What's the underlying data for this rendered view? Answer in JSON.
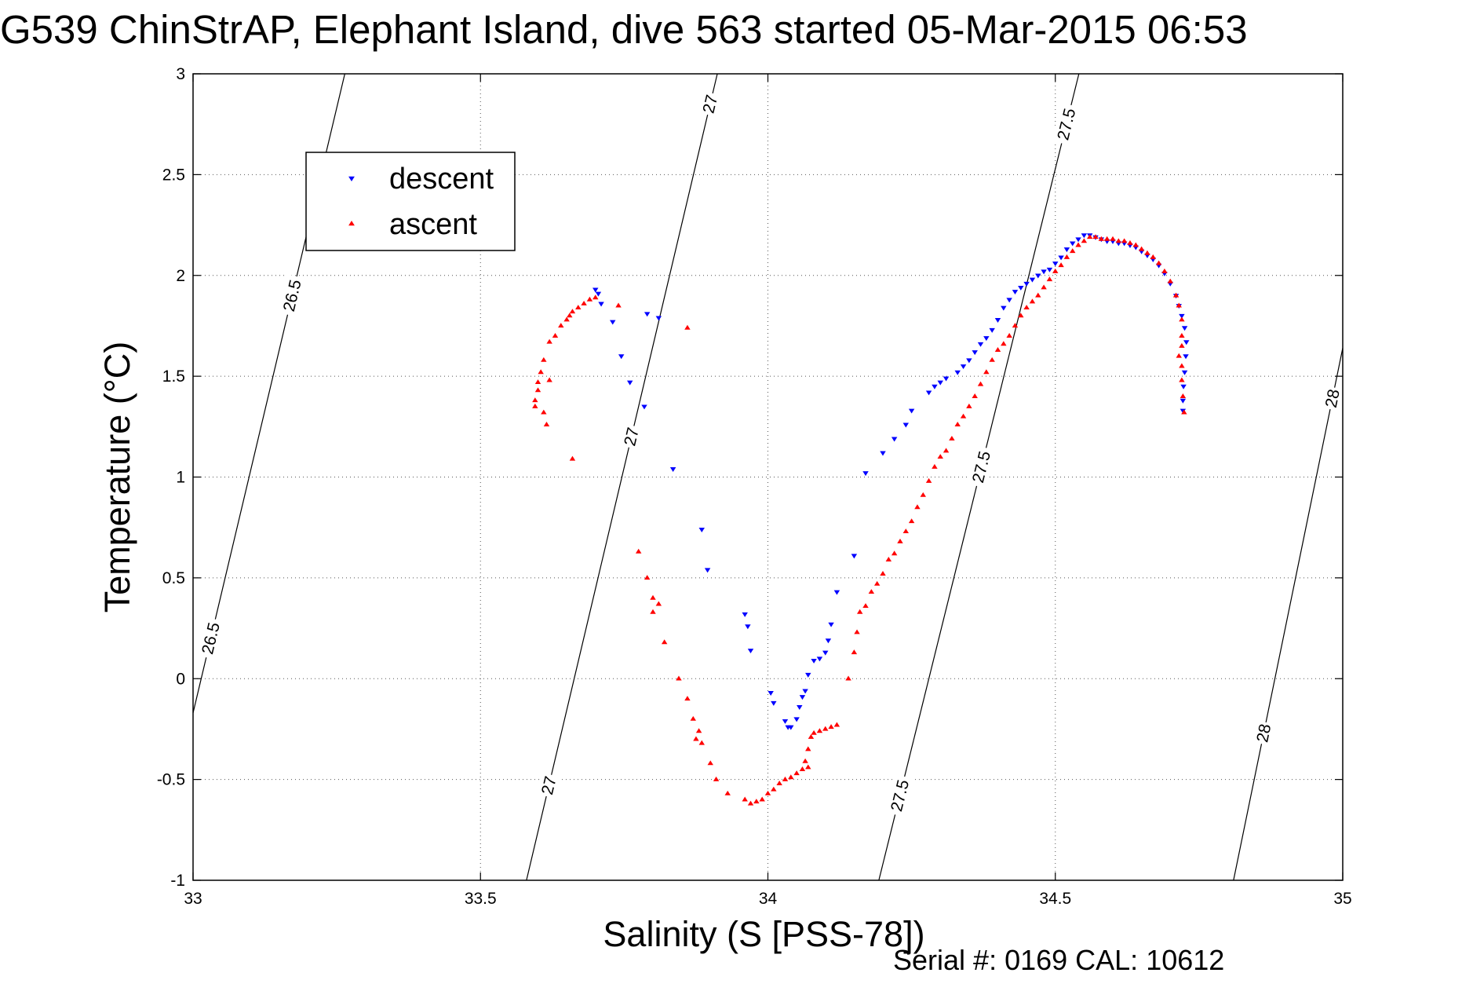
{
  "chart_data": {
    "type": "scatter",
    "title": "G539 ChinStrAP, Elephant Island, dive 563 started 05-Mar-2015 06:53",
    "xlabel": "Salinity (S [PSS-78])",
    "ylabel": "Temperature (°C)",
    "xlim": [
      33,
      35
    ],
    "ylim": [
      -1,
      3
    ],
    "xticks": [
      "33",
      "33.5",
      "34",
      "34.5",
      "35"
    ],
    "yticks": [
      "-1",
      "-0.5",
      "0",
      "0.5",
      "1",
      "1.5",
      "2",
      "2.5",
      "3"
    ],
    "grid": true,
    "legend": {
      "placement": "top-left",
      "entries": [
        "descent",
        "ascent"
      ]
    },
    "footer": "Serial #: 0169 CAL: 10612",
    "density_contours": [
      {
        "label": "26.5",
        "points": [
          [
            33.0,
            -0.17
          ],
          [
            33.264,
            3.0
          ]
        ],
        "label_positions": [
          [
            33.027,
            0.2
          ],
          [
            33.16,
            1.9
          ]
        ]
      },
      {
        "label": "27",
        "points": [
          [
            33.58,
            -1.0
          ],
          [
            33.912,
            3.0
          ]
        ],
        "label_positions": [
          [
            33.605,
            -0.53
          ],
          [
            33.7,
            1.2
          ],
          [
            33.865,
            2.85
          ]
        ]
      },
      {
        "label": "27.5",
        "points": [
          [
            34.193,
            -1.0
          ],
          [
            34.541,
            3.0
          ]
        ],
        "label_positions": [
          [
            34.22,
            -0.58
          ],
          [
            34.33,
            1.05
          ],
          [
            34.495,
            2.75
          ]
        ]
      },
      {
        "label": "28",
        "points": [
          [
            34.81,
            -1.0
          ],
          [
            35.0,
            1.64
          ]
        ],
        "label_positions": [
          [
            34.85,
            -0.27
          ],
          [
            34.985,
            1.39
          ]
        ]
      }
    ],
    "series": [
      {
        "name": "descent",
        "color": "#0000ff",
        "marker": "triangle-down",
        "points": [
          [
            33.7,
            1.93
          ],
          [
            33.705,
            1.91
          ],
          [
            33.71,
            1.86
          ],
          [
            33.73,
            1.77
          ],
          [
            33.745,
            1.6
          ],
          [
            33.76,
            1.47
          ],
          [
            33.785,
            1.35
          ],
          [
            33.79,
            1.81
          ],
          [
            33.81,
            1.79
          ],
          [
            33.835,
            1.04
          ],
          [
            33.885,
            0.74
          ],
          [
            33.895,
            0.54
          ],
          [
            33.96,
            0.32
          ],
          [
            33.965,
            0.26
          ],
          [
            33.97,
            0.14
          ],
          [
            34.005,
            -0.07
          ],
          [
            34.01,
            -0.12
          ],
          [
            34.03,
            -0.21
          ],
          [
            34.035,
            -0.24
          ],
          [
            34.04,
            -0.24
          ],
          [
            34.05,
            -0.2
          ],
          [
            34.055,
            -0.14
          ],
          [
            34.06,
            -0.09
          ],
          [
            34.065,
            -0.06
          ],
          [
            34.07,
            0.02
          ],
          [
            34.08,
            0.09
          ],
          [
            34.09,
            0.1
          ],
          [
            34.1,
            0.13
          ],
          [
            34.105,
            0.19
          ],
          [
            34.11,
            0.27
          ],
          [
            34.12,
            0.43
          ],
          [
            34.15,
            0.61
          ],
          [
            34.17,
            1.02
          ],
          [
            34.2,
            1.12
          ],
          [
            34.22,
            1.19
          ],
          [
            34.24,
            1.26
          ],
          [
            34.25,
            1.33
          ],
          [
            34.28,
            1.42
          ],
          [
            34.29,
            1.45
          ],
          [
            34.3,
            1.47
          ],
          [
            34.31,
            1.49
          ],
          [
            34.33,
            1.52
          ],
          [
            34.34,
            1.55
          ],
          [
            34.35,
            1.58
          ],
          [
            34.36,
            1.62
          ],
          [
            34.37,
            1.66
          ],
          [
            34.38,
            1.69
          ],
          [
            34.39,
            1.73
          ],
          [
            34.4,
            1.78
          ],
          [
            34.41,
            1.84
          ],
          [
            34.42,
            1.88
          ],
          [
            34.43,
            1.92
          ],
          [
            34.44,
            1.94
          ],
          [
            34.45,
            1.96
          ],
          [
            34.46,
            1.98
          ],
          [
            34.47,
            2.0
          ],
          [
            34.48,
            2.02
          ],
          [
            34.49,
            2.03
          ],
          [
            34.5,
            2.06
          ],
          [
            34.51,
            2.09
          ],
          [
            34.52,
            2.13
          ],
          [
            34.53,
            2.16
          ],
          [
            34.54,
            2.18
          ],
          [
            34.55,
            2.2
          ],
          [
            34.56,
            2.2
          ],
          [
            34.57,
            2.19
          ],
          [
            34.58,
            2.18
          ],
          [
            34.59,
            2.17
          ],
          [
            34.6,
            2.17
          ],
          [
            34.61,
            2.16
          ],
          [
            34.62,
            2.16
          ],
          [
            34.63,
            2.15
          ],
          [
            34.64,
            2.14
          ],
          [
            34.65,
            2.12
          ],
          [
            34.66,
            2.1
          ],
          [
            34.67,
            2.08
          ],
          [
            34.68,
            2.05
          ],
          [
            34.69,
            2.01
          ],
          [
            34.7,
            1.96
          ],
          [
            34.71,
            1.9
          ],
          [
            34.715,
            1.85
          ],
          [
            34.72,
            1.8
          ],
          [
            34.725,
            1.74
          ],
          [
            34.728,
            1.67
          ],
          [
            34.727,
            1.6
          ],
          [
            34.725,
            1.52
          ],
          [
            34.723,
            1.45
          ],
          [
            34.722,
            1.38
          ],
          [
            34.722,
            1.33
          ]
        ]
      },
      {
        "name": "ascent",
        "color": "#ff0000",
        "marker": "triangle-up",
        "points": [
          [
            33.7,
            1.89
          ],
          [
            33.69,
            1.88
          ],
          [
            33.68,
            1.86
          ],
          [
            33.67,
            1.84
          ],
          [
            33.66,
            1.82
          ],
          [
            33.655,
            1.8
          ],
          [
            33.65,
            1.78
          ],
          [
            33.64,
            1.75
          ],
          [
            33.63,
            1.7
          ],
          [
            33.62,
            1.67
          ],
          [
            33.61,
            1.58
          ],
          [
            33.605,
            1.52
          ],
          [
            33.6,
            1.47
          ],
          [
            33.62,
            1.48
          ],
          [
            33.6,
            1.43
          ],
          [
            33.595,
            1.38
          ],
          [
            33.595,
            1.35
          ],
          [
            33.61,
            1.32
          ],
          [
            33.615,
            1.26
          ],
          [
            33.66,
            1.09
          ],
          [
            33.74,
            1.85
          ],
          [
            33.86,
            1.74
          ],
          [
            33.775,
            0.63
          ],
          [
            33.79,
            0.5
          ],
          [
            33.8,
            0.4
          ],
          [
            33.81,
            0.37
          ],
          [
            33.8,
            0.33
          ],
          [
            33.82,
            0.18
          ],
          [
            33.845,
            0.0
          ],
          [
            33.86,
            -0.1
          ],
          [
            33.87,
            -0.2
          ],
          [
            33.88,
            -0.26
          ],
          [
            33.885,
            -0.32
          ],
          [
            33.875,
            -0.3
          ],
          [
            33.9,
            -0.42
          ],
          [
            33.91,
            -0.5
          ],
          [
            33.93,
            -0.57
          ],
          [
            33.96,
            -0.6
          ],
          [
            33.97,
            -0.62
          ],
          [
            33.98,
            -0.61
          ],
          [
            33.99,
            -0.6
          ],
          [
            34.0,
            -0.57
          ],
          [
            34.01,
            -0.55
          ],
          [
            34.02,
            -0.52
          ],
          [
            34.03,
            -0.5
          ],
          [
            34.04,
            -0.49
          ],
          [
            34.05,
            -0.47
          ],
          [
            34.06,
            -0.45
          ],
          [
            34.07,
            -0.44
          ],
          [
            34.065,
            -0.41
          ],
          [
            34.07,
            -0.35
          ],
          [
            34.075,
            -0.29
          ],
          [
            34.08,
            -0.27
          ],
          [
            34.09,
            -0.26
          ],
          [
            34.1,
            -0.25
          ],
          [
            34.11,
            -0.24
          ],
          [
            34.12,
            -0.23
          ],
          [
            34.14,
            0.0
          ],
          [
            34.15,
            0.13
          ],
          [
            34.155,
            0.23
          ],
          [
            34.16,
            0.33
          ],
          [
            34.17,
            0.36
          ],
          [
            34.18,
            0.43
          ],
          [
            34.19,
            0.47
          ],
          [
            34.2,
            0.52
          ],
          [
            34.21,
            0.59
          ],
          [
            34.22,
            0.62
          ],
          [
            34.23,
            0.68
          ],
          [
            34.24,
            0.73
          ],
          [
            34.25,
            0.78
          ],
          [
            34.26,
            0.85
          ],
          [
            34.27,
            0.91
          ],
          [
            34.28,
            0.98
          ],
          [
            34.29,
            1.05
          ],
          [
            34.3,
            1.1
          ],
          [
            34.31,
            1.13
          ],
          [
            34.32,
            1.19
          ],
          [
            34.33,
            1.26
          ],
          [
            34.34,
            1.3
          ],
          [
            34.35,
            1.35
          ],
          [
            34.36,
            1.4
          ],
          [
            34.37,
            1.46
          ],
          [
            34.38,
            1.52
          ],
          [
            34.39,
            1.58
          ],
          [
            34.4,
            1.63
          ],
          [
            34.41,
            1.66
          ],
          [
            34.42,
            1.7
          ],
          [
            34.43,
            1.75
          ],
          [
            34.44,
            1.8
          ],
          [
            34.45,
            1.84
          ],
          [
            34.46,
            1.87
          ],
          [
            34.47,
            1.9
          ],
          [
            34.48,
            1.94
          ],
          [
            34.49,
            1.98
          ],
          [
            34.5,
            2.02
          ],
          [
            34.51,
            2.05
          ],
          [
            34.52,
            2.09
          ],
          [
            34.53,
            2.12
          ],
          [
            34.54,
            2.15
          ],
          [
            34.55,
            2.17
          ],
          [
            34.56,
            2.19
          ],
          [
            34.57,
            2.19
          ],
          [
            34.58,
            2.18
          ],
          [
            34.59,
            2.18
          ],
          [
            34.6,
            2.18
          ],
          [
            34.61,
            2.17
          ],
          [
            34.62,
            2.17
          ],
          [
            34.63,
            2.16
          ],
          [
            34.64,
            2.15
          ],
          [
            34.65,
            2.13
          ],
          [
            34.66,
            2.11
          ],
          [
            34.67,
            2.09
          ],
          [
            34.68,
            2.06
          ],
          [
            34.69,
            2.02
          ],
          [
            34.7,
            1.97
          ],
          [
            34.71,
            1.9
          ],
          [
            34.715,
            1.85
          ],
          [
            34.72,
            1.78
          ],
          [
            34.72,
            1.7
          ],
          [
            34.72,
            1.65
          ],
          [
            34.715,
            1.6
          ],
          [
            34.72,
            1.55
          ],
          [
            34.72,
            1.48
          ],
          [
            34.722,
            1.4
          ],
          [
            34.724,
            1.32
          ]
        ]
      }
    ]
  }
}
